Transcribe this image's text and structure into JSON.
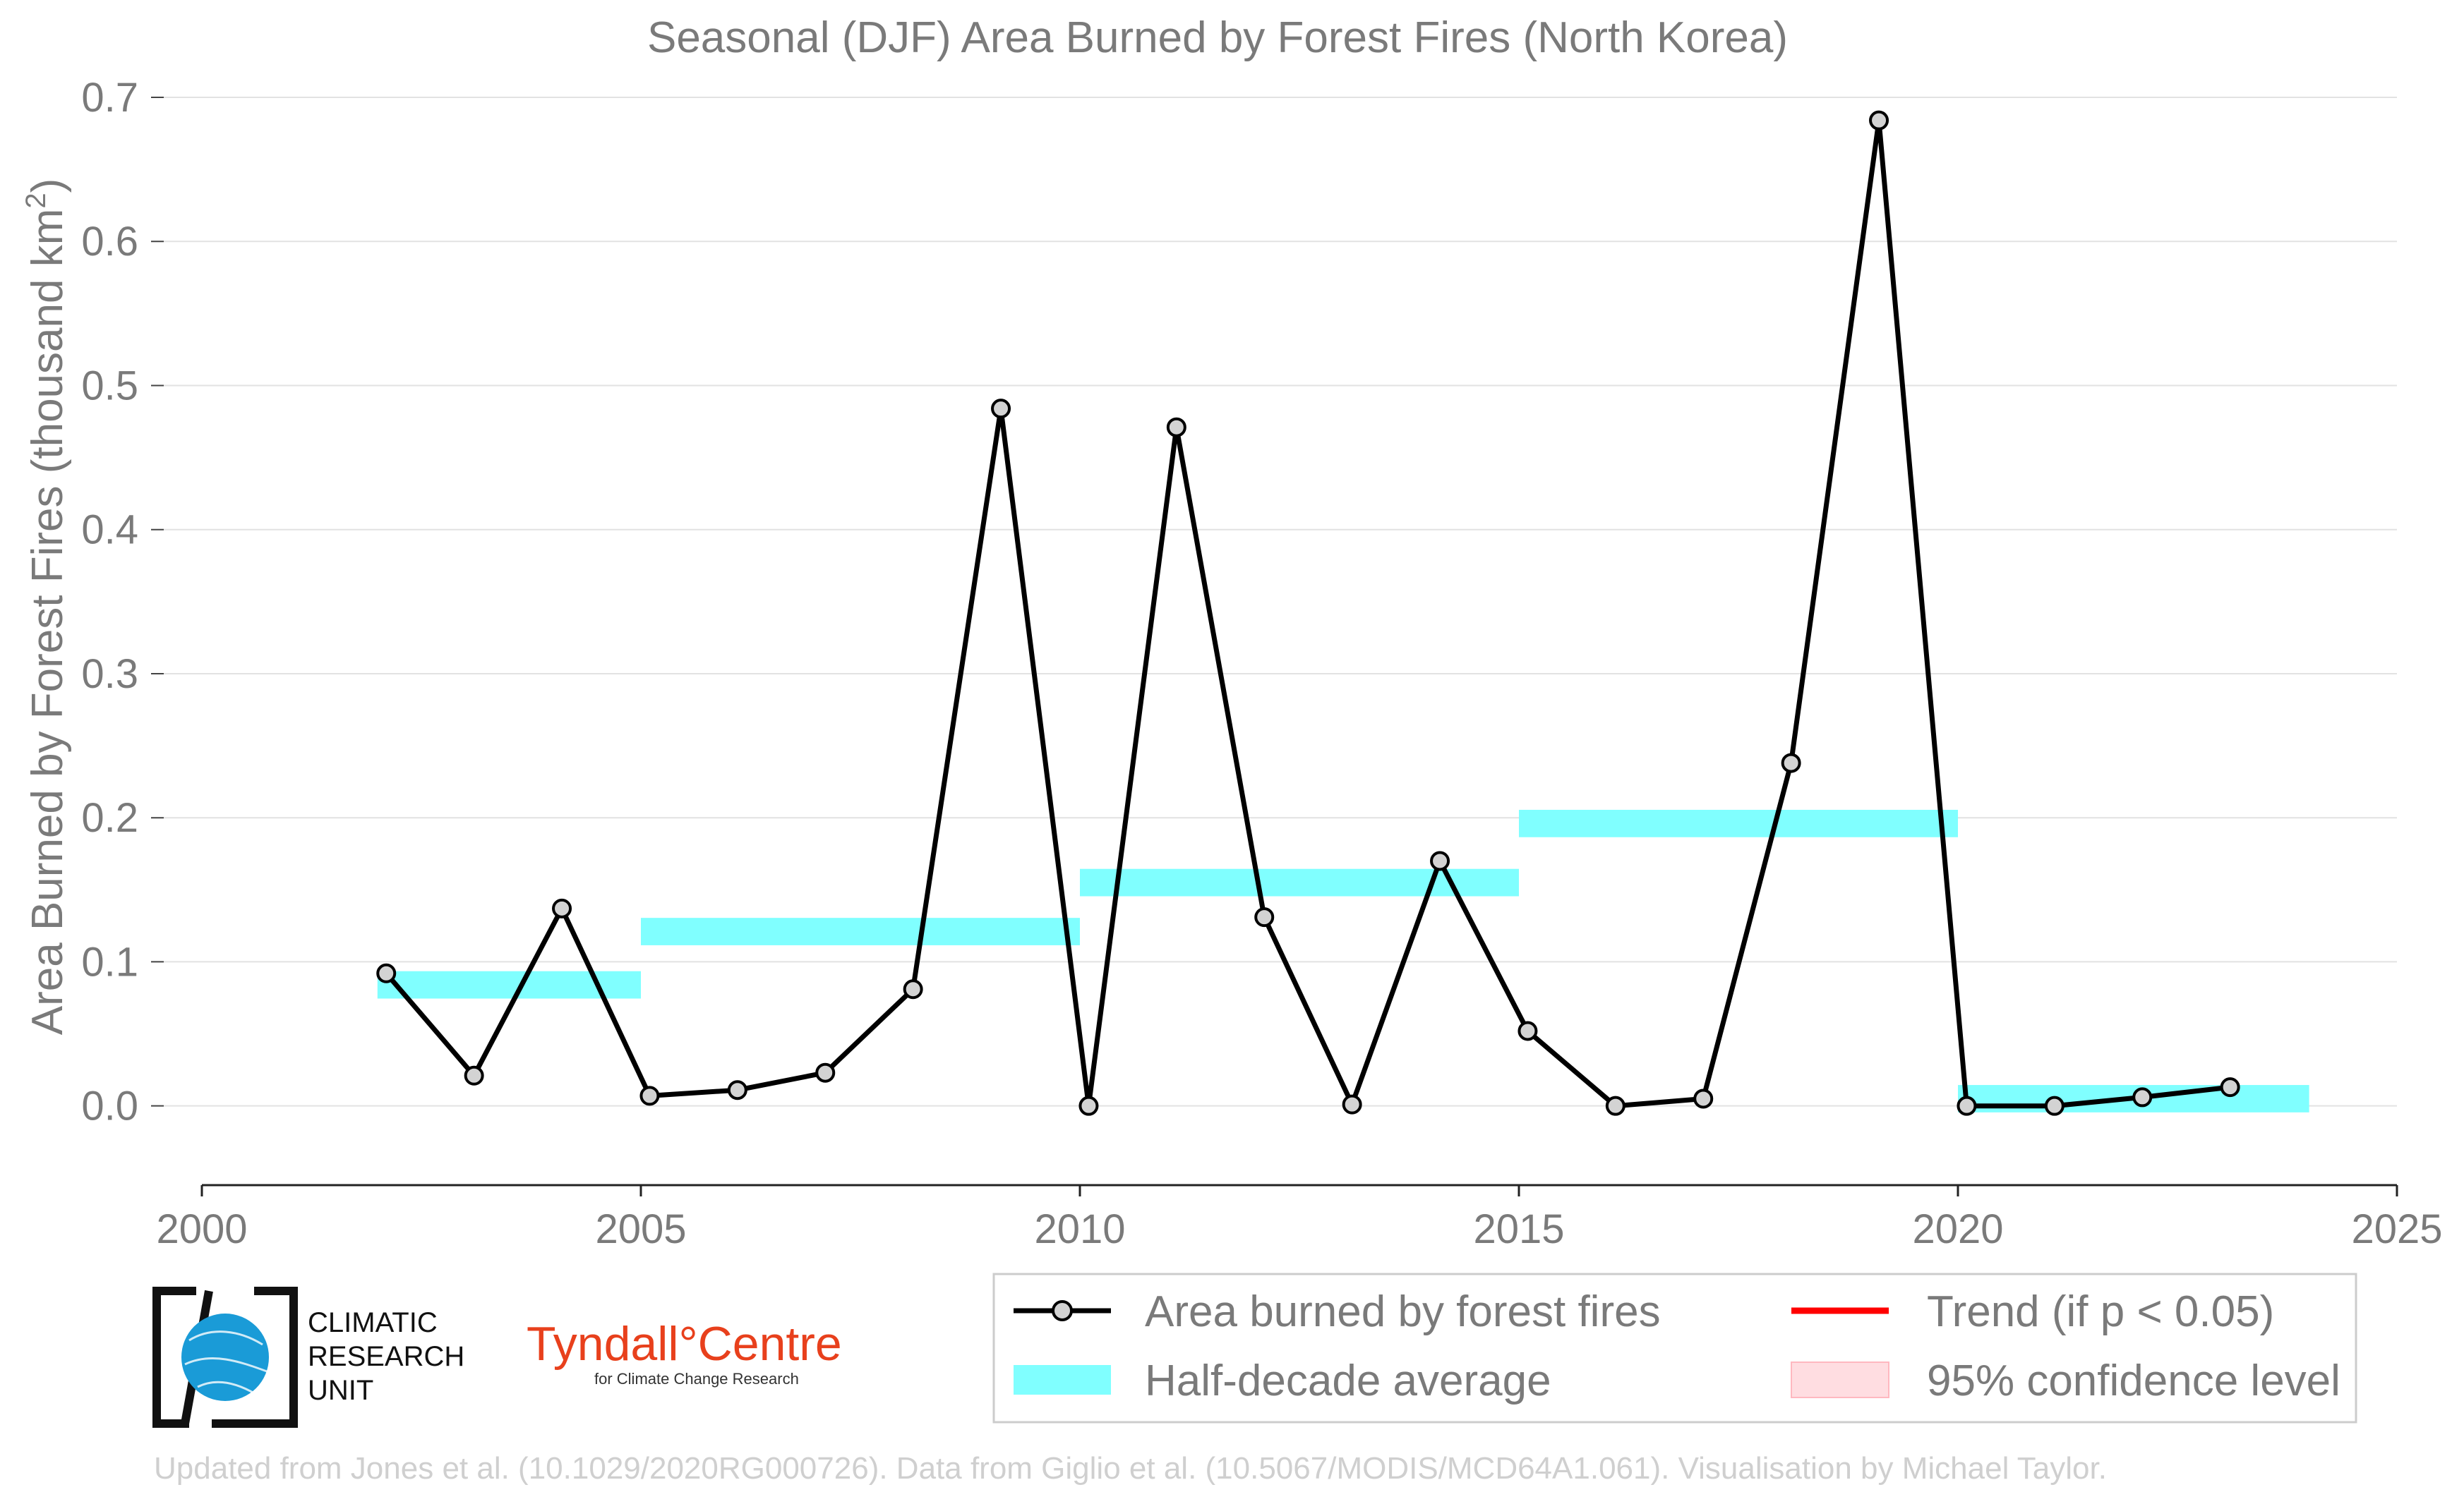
{
  "chart_data": {
    "type": "line",
    "title": "Seasonal (DJF) Area Burned by Forest Fires (North Korea)",
    "xlabel": "",
    "ylabel": "Area Burned by Forest Fires (thousand km²)",
    "xlim": [
      2000,
      2025
    ],
    "ylim": [
      -0.055,
      0.7
    ],
    "x_ticks": [
      2000,
      2005,
      2010,
      2015,
      2020,
      2025
    ],
    "y_ticks": [
      0.0,
      0.1,
      0.2,
      0.3,
      0.4,
      0.5,
      0.6,
      0.7
    ],
    "grid": true,
    "series": [
      {
        "name": "Area burned by forest fires",
        "color": "#000000",
        "marker_fill": "#d3d3d3",
        "x": [
          2002.1,
          2003.1,
          2004.1,
          2005.1,
          2006.1,
          2007.1,
          2008.1,
          2009.1,
          2010.1,
          2011.1,
          2012.1,
          2013.1,
          2014.1,
          2015.1,
          2016.1,
          2017.1,
          2018.1,
          2019.1,
          2020.1,
          2021.1,
          2022.1,
          2023.1
        ],
        "values": [
          0.092,
          0.021,
          0.137,
          0.007,
          0.011,
          0.023,
          0.081,
          0.484,
          0.0,
          0.471,
          0.131,
          0.001,
          0.17,
          0.052,
          0.0,
          0.005,
          0.238,
          0.684,
          0.0,
          0.0,
          0.006,
          0.013
        ]
      }
    ],
    "half_decade_average": {
      "name": "Half-decade average",
      "color": "#80ffff",
      "segments": [
        {
          "x0": 2002,
          "x1": 2005,
          "value": 0.084
        },
        {
          "x0": 2005,
          "x1": 2010,
          "value": 0.121
        },
        {
          "x0": 2010,
          "x1": 2015,
          "value": 0.155
        },
        {
          "x0": 2015,
          "x1": 2020,
          "value": 0.196
        },
        {
          "x0": 2020,
          "x1": 2024,
          "value": 0.005
        }
      ]
    },
    "legend": {
      "placement": "bottom-right",
      "items": [
        {
          "label": "Area burned by forest fires",
          "kind": "line-marker",
          "color": "#000000"
        },
        {
          "label": "Trend (if p < 0.05)",
          "kind": "line",
          "color": "#ff0000"
        },
        {
          "label": "Half-decade average",
          "kind": "band",
          "color": "#80ffff"
        },
        {
          "label": "95% confidence level",
          "kind": "patch",
          "color": "#ffdde1"
        }
      ]
    }
  },
  "logos": {
    "cru_lines": [
      "CLIMATIC",
      "RESEARCH",
      "UNIT"
    ],
    "tyndall_main": "Tyndall°Centre",
    "tyndall_sub": "for Climate Change Research"
  },
  "credit": "Updated from Jones et al. (10.1029/2020RG000726). Data from Giglio et al. (10.5067/MODIS/MCD64A1.061). Visualisation by Michael Taylor."
}
